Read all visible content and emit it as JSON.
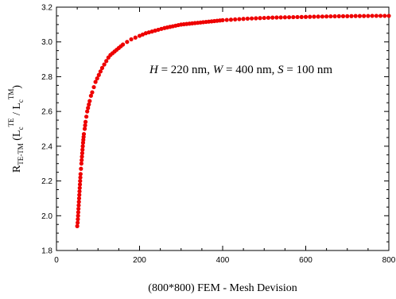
{
  "chart_data": {
    "type": "scatter",
    "xlabel": "(800*800) FEM - Mesh Devision",
    "ylabel": {
      "main": "R",
      "main_sub": "TE-TM",
      "paren_open": " (L",
      "num_sub": "c",
      "num_sup": "TE",
      "slash": " / L",
      "den_sub": "c",
      "den_sup": "TM",
      "paren_close": ")"
    },
    "annotation": {
      "H_sym": "H",
      "H_val": " = 220 nm, ",
      "W_sym": "W",
      "W_val": " = 400 nm, ",
      "S_sym": "S",
      "S_val": " = 100 nm"
    },
    "xlim": [
      0,
      800
    ],
    "ylim": [
      1.8,
      3.2
    ],
    "xticks": [
      {
        "value": 0,
        "label": "0"
      },
      {
        "value": 200,
        "label": "200"
      },
      {
        "value": 400,
        "label": "400"
      },
      {
        "value": 600,
        "label": "600"
      },
      {
        "value": 800,
        "label": "800"
      }
    ],
    "yticks": [
      {
        "value": 1.8,
        "label": "1.8"
      },
      {
        "value": 2.0,
        "label": "2.0"
      },
      {
        "value": 2.2,
        "label": "2.2"
      },
      {
        "value": 2.4,
        "label": "2.4"
      },
      {
        "value": 2.6,
        "label": "2.6"
      },
      {
        "value": 2.8,
        "label": "2.8"
      },
      {
        "value": 3.0,
        "label": "3.0"
      },
      {
        "value": 3.2,
        "label": "3.2"
      }
    ],
    "grid": false,
    "marker_color": "#ee0000",
    "series": [
      {
        "x": [
          50,
          51,
          52,
          53,
          54,
          55,
          56,
          57,
          58,
          59,
          60,
          62,
          64,
          66,
          68,
          70,
          72,
          74,
          76,
          78,
          80,
          83,
          86,
          90,
          94,
          98,
          102,
          106,
          110,
          115,
          120,
          125,
          130,
          135,
          140,
          145,
          150,
          155,
          160,
          170,
          180,
          190,
          200,
          215,
          230,
          245,
          260,
          280,
          300,
          320,
          340,
          360,
          380,
          400,
          420,
          440,
          460,
          480,
          500,
          520,
          540,
          560,
          580,
          600,
          620,
          640,
          660,
          680,
          700,
          720,
          740,
          760,
          780,
          800
        ],
        "y": [
          1.94,
          1.96,
          2.0,
          2.04,
          2.08,
          2.12,
          2.16,
          2.2,
          2.24,
          2.27,
          2.3,
          2.36,
          2.42,
          2.47,
          2.5,
          2.54,
          2.57,
          2.6,
          2.62,
          2.64,
          2.66,
          2.69,
          2.71,
          2.74,
          2.77,
          2.79,
          2.81,
          2.83,
          2.85,
          2.87,
          2.89,
          2.91,
          2.925,
          2.935,
          2.945,
          2.955,
          2.965,
          2.975,
          2.985,
          3.0,
          3.015,
          3.025,
          3.035,
          3.05,
          3.06,
          3.07,
          3.08,
          3.09,
          3.1,
          3.105,
          3.11,
          3.115,
          3.12,
          3.125,
          3.128,
          3.131,
          3.134,
          3.136,
          3.138,
          3.14,
          3.141,
          3.142,
          3.143,
          3.144,
          3.145,
          3.146,
          3.147,
          3.148,
          3.148,
          3.149,
          3.149,
          3.15,
          3.15,
          3.15
        ]
      }
    ]
  }
}
